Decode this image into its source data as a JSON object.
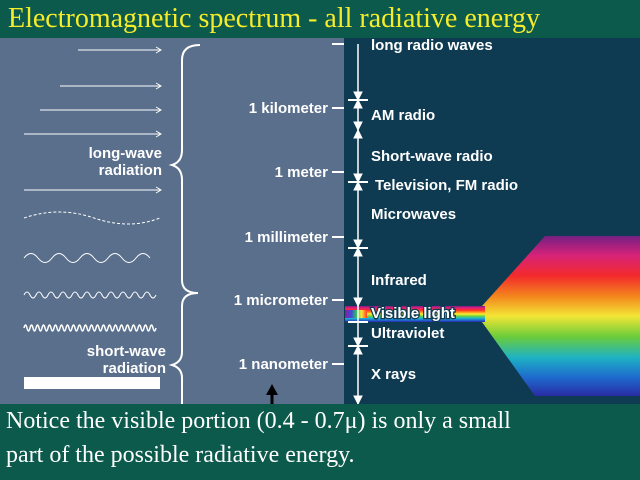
{
  "title": "Electromagnetic spectrum - all radiative energy",
  "colors": {
    "slide_bg": "#0c5a4c",
    "title_text": "#f5ec2a",
    "left_panel": "#5a6f8b",
    "right_panel": "#0f3b52",
    "label_text": "#ffffff"
  },
  "diagram": {
    "left_labels": {
      "long_wave": [
        "long-wave",
        "radiation"
      ],
      "short_wave": [
        "short-wave",
        "radiation"
      ]
    },
    "scale_ticks": [
      "1 kilometer",
      "1 meter",
      "1 millimeter",
      "1 micrometer",
      "1 nanometer"
    ],
    "bands": [
      "long radio waves",
      "AM radio",
      "Short-wave radio",
      "Television, FM radio",
      "Microwaves",
      "Infrared",
      "Visible light",
      "Ultraviolet",
      "X rays"
    ]
  },
  "caption": {
    "line1": "Notice the visible portion (0.4 - 0.7μ) is only a small",
    "line2": "part of the possible radiative energy."
  }
}
